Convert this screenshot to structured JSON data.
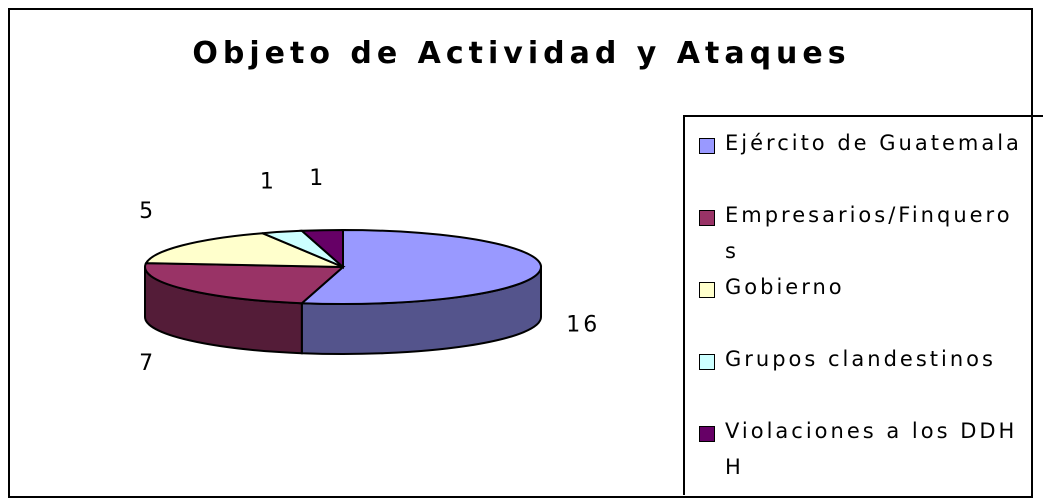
{
  "chart_data": {
    "type": "pie",
    "title": "Objeto de Actividad y Ataques",
    "categories": [
      "Ejército de Guatemala",
      "Empresarios/Finqueros",
      "Gobierno",
      "Grupos clandestinos",
      "Violaciones a los DDHH"
    ],
    "values": [
      16,
      7,
      5,
      1,
      1
    ],
    "colors": [
      "#9999ff",
      "#993366",
      "#ffffcc",
      "#ccffff",
      "#660066"
    ],
    "legend": "right"
  }
}
